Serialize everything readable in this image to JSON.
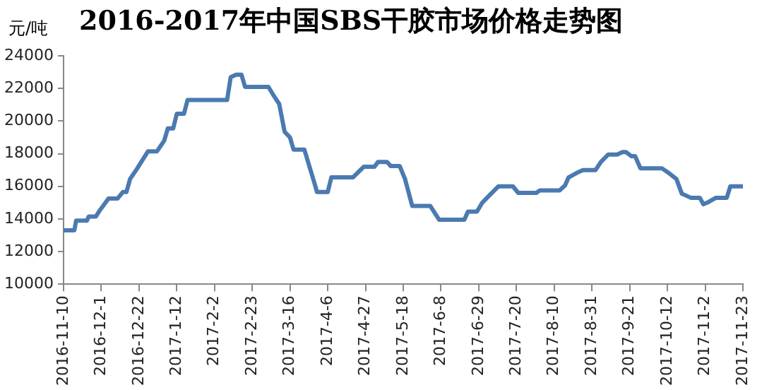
{
  "chart_data": {
    "type": "line",
    "title": "2016-2017年中国SBS干胶市场价格走势图",
    "ylabel": "元/吨",
    "x": [
      "2016-11-10",
      "2016-11-16",
      "2016-11-17",
      "2016-11-23",
      "2016-11-24",
      "2016-11-28",
      "2016-11-30",
      "2016-12-02",
      "2016-12-05",
      "2016-12-10",
      "2016-12-13",
      "2016-12-15",
      "2016-12-17",
      "2016-12-21",
      "2016-12-27",
      "2017-01-01",
      "2017-01-05",
      "2017-01-07",
      "2017-01-10",
      "2017-01-12",
      "2017-01-16",
      "2017-01-18",
      "2017-02-09",
      "2017-02-11",
      "2017-02-14",
      "2017-02-17",
      "2017-02-19",
      "2017-03-04",
      "2017-03-07",
      "2017-03-10",
      "2017-03-13",
      "2017-03-16",
      "2017-03-18",
      "2017-03-24",
      "2017-03-30",
      "2017-03-31",
      "2017-04-06",
      "2017-04-08",
      "2017-04-20",
      "2017-04-26",
      "2017-05-02",
      "2017-05-04",
      "2017-05-09",
      "2017-05-11",
      "2017-05-16",
      "2017-05-19",
      "2017-05-23",
      "2017-06-02",
      "2017-06-07",
      "2017-06-21",
      "2017-06-23",
      "2017-06-28",
      "2017-07-01",
      "2017-07-05",
      "2017-07-10",
      "2017-07-18",
      "2017-07-21",
      "2017-07-31",
      "2017-08-02",
      "2017-08-13",
      "2017-08-16",
      "2017-08-18",
      "2017-08-23",
      "2017-08-26",
      "2017-09-02",
      "2017-09-05",
      "2017-09-09",
      "2017-09-14",
      "2017-09-17",
      "2017-09-19",
      "2017-09-22",
      "2017-09-24",
      "2017-09-27",
      "2017-10-09",
      "2017-10-13",
      "2017-10-17",
      "2017-10-20",
      "2017-10-25",
      "2017-10-30",
      "2017-11-01",
      "2017-11-04",
      "2017-11-08",
      "2017-11-14",
      "2017-11-16",
      "2017-11-23"
    ],
    "series": [
      {
        "color": "#4a7ab0",
        "values": [
          13300,
          13300,
          13900,
          13900,
          14150,
          14150,
          14500,
          14800,
          15250,
          15250,
          15650,
          15650,
          16450,
          17100,
          18150,
          18150,
          18800,
          19550,
          19550,
          20450,
          20450,
          21300,
          21300,
          22700,
          22850,
          22850,
          22100,
          22100,
          21550,
          21050,
          19350,
          19000,
          18250,
          18250,
          16050,
          15650,
          15650,
          16550,
          16550,
          17200,
          17200,
          17500,
          17500,
          17250,
          17250,
          16450,
          14800,
          14800,
          13950,
          13950,
          14450,
          14450,
          15000,
          15450,
          16000,
          16000,
          15600,
          15600,
          15750,
          15750,
          16050,
          16550,
          16850,
          17000,
          17000,
          17500,
          17950,
          17950,
          18100,
          18100,
          17850,
          17850,
          17100,
          17100,
          16800,
          16450,
          15550,
          15300,
          15300,
          14900,
          15050,
          15300,
          15300,
          16000,
          16000
        ]
      }
    ],
    "xlim": [
      "2016-11-10",
      "2017-11-23"
    ],
    "xticks": [
      {
        "value": "2016-11-10",
        "label": "2016-11-10"
      },
      {
        "value": "2016-12-01",
        "label": "2016-12-1"
      },
      {
        "value": "2016-12-22",
        "label": "2016-12-22"
      },
      {
        "value": "2017-01-12",
        "label": "2017-1-12"
      },
      {
        "value": "2017-02-02",
        "label": "2017-2-2"
      },
      {
        "value": "2017-02-23",
        "label": "2017-2-23"
      },
      {
        "value": "2017-03-16",
        "label": "2017-3-16"
      },
      {
        "value": "2017-04-06",
        "label": "2017-4-6"
      },
      {
        "value": "2017-04-27",
        "label": "2017-4-27"
      },
      {
        "value": "2017-05-18",
        "label": "2017-5-18"
      },
      {
        "value": "2017-06-08",
        "label": "2017-6-8"
      },
      {
        "value": "2017-06-29",
        "label": "2017-6-29"
      },
      {
        "value": "2017-07-20",
        "label": "2017-7-20"
      },
      {
        "value": "2017-08-10",
        "label": "2017-8-10"
      },
      {
        "value": "2017-08-31",
        "label": "2017-8-31"
      },
      {
        "value": "2017-09-21",
        "label": "2017-9-21"
      },
      {
        "value": "2017-10-12",
        "label": "2017-10-12"
      },
      {
        "value": "2017-11-02",
        "label": "2017-11-2"
      },
      {
        "value": "2017-11-23",
        "label": "2017-11-23"
      }
    ],
    "ylim": [
      10000,
      24000
    ],
    "yticks": [
      10000,
      12000,
      14000,
      16000,
      18000,
      20000,
      22000,
      24000
    ],
    "grid": false,
    "legend": false,
    "marker": "none",
    "line_style": "solid"
  }
}
